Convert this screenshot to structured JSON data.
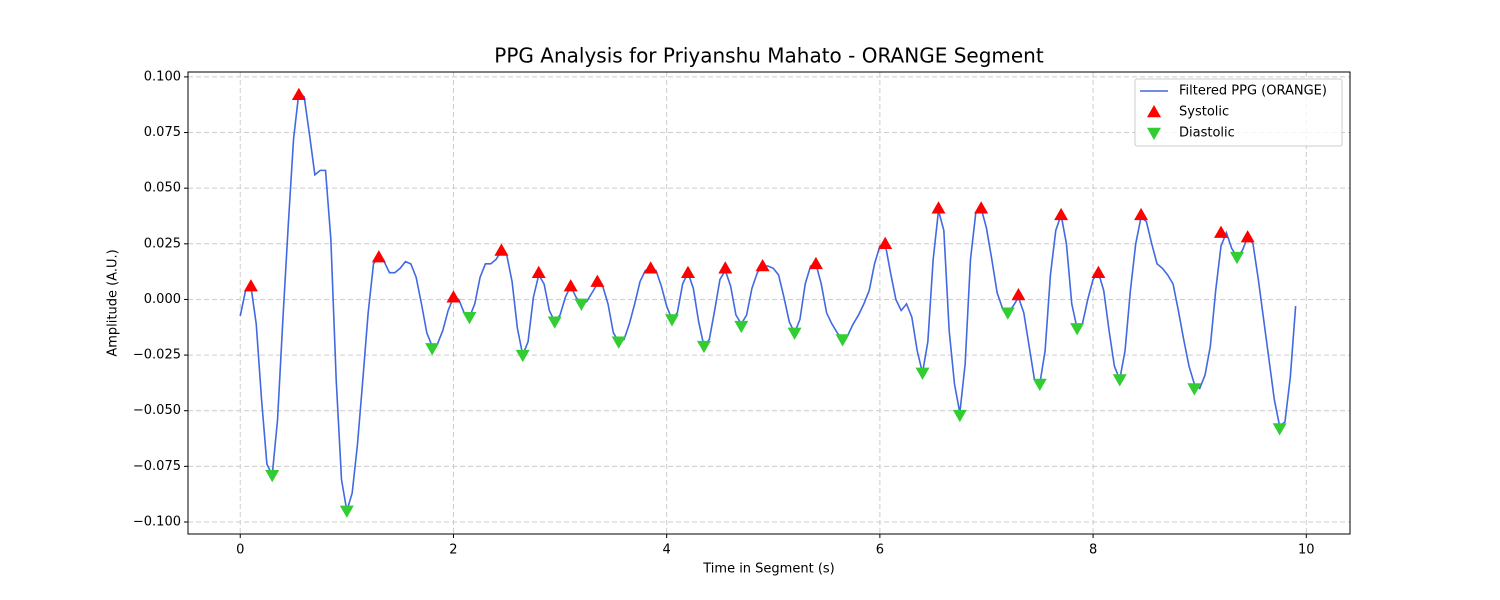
{
  "chart_data": {
    "type": "line",
    "title": "PPG Analysis for Priyanshu Mahato - ORANGE Segment",
    "xlabel": "Time in Segment (s)",
    "ylabel": "Amplitude (A.U.)",
    "xlim": [
      -0.49,
      10.41
    ],
    "ylim": [
      -0.1054,
      0.1022
    ],
    "xticks": [
      0,
      2,
      4,
      6,
      8,
      10
    ],
    "yticks": [
      {
        "value": 0.1,
        "label": "0.100"
      },
      {
        "value": 0.075,
        "label": "0.075"
      },
      {
        "value": 0.05,
        "label": "0.050"
      },
      {
        "value": 0.025,
        "label": "0.025"
      },
      {
        "value": 0,
        "label": "0.000"
      },
      {
        "value": -0.025,
        "label": "−0.025"
      },
      {
        "value": -0.05,
        "label": "−0.050"
      },
      {
        "value": -0.075,
        "label": "−0.075"
      },
      {
        "value": -0.1,
        "label": "−0.100"
      }
    ],
    "grid": true,
    "legend": "upper right",
    "series": [
      {
        "name": "Filtered PPG (ORANGE)",
        "type": "line",
        "color": "#4169e1",
        "x": [
          0,
          0.05,
          0.1,
          0.15,
          0.2,
          0.25,
          0.3,
          0.35,
          0.4,
          0.45,
          0.5,
          0.55,
          0.6,
          0.65,
          0.7,
          0.75,
          0.8,
          0.85,
          0.9,
          0.95,
          1,
          1.05,
          1.1,
          1.15,
          1.2,
          1.25,
          1.3,
          1.35,
          1.4,
          1.45,
          1.5,
          1.55,
          1.6,
          1.65,
          1.7,
          1.75,
          1.8,
          1.85,
          1.9,
          1.95,
          2,
          2.05,
          2.1,
          2.15,
          2.2,
          2.25,
          2.3,
          2.35,
          2.4,
          2.45,
          2.5,
          2.55,
          2.6,
          2.65,
          2.7,
          2.75,
          2.8,
          2.85,
          2.9,
          2.95,
          3,
          3.05,
          3.1,
          3.15,
          3.2,
          3.25,
          3.3,
          3.35,
          3.4,
          3.45,
          3.5,
          3.55,
          3.6,
          3.65,
          3.7,
          3.75,
          3.8,
          3.85,
          3.9,
          3.95,
          4,
          4.05,
          4.1,
          4.15,
          4.2,
          4.25,
          4.3,
          4.35,
          4.4,
          4.45,
          4.5,
          4.55,
          4.6,
          4.65,
          4.7,
          4.75,
          4.8,
          4.85,
          4.9,
          4.95,
          5,
          5.05,
          5.1,
          5.15,
          5.2,
          5.25,
          5.3,
          5.35,
          5.4,
          5.45,
          5.5,
          5.55,
          5.6,
          5.65,
          5.7,
          5.75,
          5.8,
          5.85,
          5.9,
          5.95,
          6,
          6.05,
          6.1,
          6.15,
          6.2,
          6.25,
          6.3,
          6.35,
          6.4,
          6.45,
          6.5,
          6.55,
          6.6,
          6.65,
          6.7,
          6.75,
          6.8,
          6.85,
          6.9,
          6.95,
          7,
          7.05,
          7.1,
          7.15,
          7.2,
          7.25,
          7.3,
          7.35,
          7.4,
          7.45,
          7.5,
          7.55,
          7.6,
          7.65,
          7.7,
          7.75,
          7.8,
          7.85,
          7.9,
          7.95,
          8,
          8.05,
          8.1,
          8.15,
          8.2,
          8.25,
          8.3,
          8.35,
          8.4,
          8.45,
          8.5,
          8.55,
          8.6,
          8.65,
          8.7,
          8.75,
          8.8,
          8.85,
          8.9,
          8.95,
          9,
          9.05,
          9.1,
          9.15,
          9.2,
          9.25,
          9.3,
          9.35,
          9.4,
          9.45,
          9.5,
          9.55,
          9.6,
          9.65,
          9.7,
          9.75,
          9.8,
          9.85,
          9.9
        ],
        "values": [
          -0.0074,
          0.004,
          0.006,
          -0.011,
          -0.045,
          -0.074,
          -0.079,
          -0.054,
          -0.009,
          0.033,
          0.072,
          0.093,
          0.091,
          0.074,
          0.056,
          0.058,
          0.058,
          0.027,
          -0.036,
          -0.081,
          -0.095,
          -0.087,
          -0.065,
          -0.036,
          -0.006,
          0.016,
          0.019,
          0.017,
          0.012,
          0.012,
          0.014,
          0.017,
          0.016,
          0.01,
          -0.002,
          -0.015,
          -0.021,
          -0.02,
          -0.014,
          -0.005,
          0.001,
          0.0,
          -0.006,
          -0.008,
          -0.002,
          0.01,
          0.016,
          0.016,
          0.018,
          0.022,
          0.02,
          0.008,
          -0.013,
          -0.025,
          -0.019,
          0.001,
          0.011,
          0.007,
          -0.005,
          -0.01,
          -0.007,
          0.001,
          0.006,
          0.001,
          -0.002,
          -0.001,
          0.003,
          0.007,
          0.006,
          -0.002,
          -0.015,
          -0.019,
          -0.018,
          -0.011,
          -0.002,
          0.008,
          0.013,
          0.014,
          0.013,
          0.006,
          -0.003,
          -0.009,
          -0.006,
          0.007,
          0.012,
          0.005,
          -0.01,
          -0.021,
          -0.018,
          -0.005,
          0.009,
          0.013,
          0.006,
          -0.007,
          -0.011,
          -0.007,
          0.005,
          0.012,
          0.015,
          0.015,
          0.014,
          0.011,
          0.001,
          -0.01,
          -0.015,
          -0.009,
          0.007,
          0.015,
          0.016,
          0.007,
          -0.006,
          -0.011,
          -0.015,
          -0.018,
          -0.016,
          -0.011,
          -0.007,
          -0.002,
          0.004,
          0.016,
          0.024,
          0.025,
          0.012,
          0.0,
          -0.005,
          -0.002,
          -0.008,
          -0.023,
          -0.033,
          -0.019,
          0.018,
          0.04,
          0.031,
          -0.014,
          -0.038,
          -0.051,
          -0.029,
          0.018,
          0.039,
          0.041,
          0.032,
          0.018,
          0.003,
          -0.004,
          -0.006,
          -0.003,
          0.001,
          -0.006,
          -0.021,
          -0.036,
          -0.038,
          -0.023,
          0.011,
          0.031,
          0.038,
          0.025,
          -0.002,
          -0.013,
          -0.011,
          0.0,
          0.009,
          0.012,
          0.004,
          -0.014,
          -0.03,
          -0.036,
          -0.023,
          0.004,
          0.025,
          0.037,
          0.035,
          0.025,
          0.016,
          0.014,
          0.011,
          0.007,
          -0.005,
          -0.018,
          -0.03,
          -0.038,
          -0.04,
          -0.034,
          -0.021,
          0.004,
          0.024,
          0.03,
          0.023,
          0.019,
          0.022,
          0.028,
          0.025,
          0.009,
          -0.009,
          -0.027,
          -0.045,
          -0.057,
          -0.055,
          -0.035,
          -0.003
        ]
      },
      {
        "name": "Systolic",
        "type": "scatter",
        "marker": "up",
        "color": "#ff0000",
        "x": [
          0.1,
          0.55,
          1.3,
          2.0,
          2.45,
          2.8,
          3.1,
          3.35,
          3.85,
          4.2,
          4.55,
          4.9,
          5.4,
          6.05,
          6.55,
          6.95,
          7.3,
          7.7,
          8.05,
          8.45,
          9.2,
          9.45
        ],
        "values": [
          0.006,
          0.092,
          0.019,
          0.001,
          0.022,
          0.012,
          0.006,
          0.008,
          0.014,
          0.012,
          0.014,
          0.015,
          0.016,
          0.025,
          0.041,
          0.041,
          0.002,
          0.038,
          0.012,
          0.038,
          0.03,
          0.028
        ]
      },
      {
        "name": "Diastolic",
        "type": "scatter",
        "marker": "down",
        "color": "#32cd32",
        "x": [
          0.3,
          1.0,
          1.8,
          2.15,
          2.65,
          2.95,
          3.2,
          3.55,
          4.05,
          4.35,
          4.7,
          5.2,
          5.65,
          6.4,
          6.75,
          7.2,
          7.5,
          7.85,
          8.25,
          8.95,
          9.35,
          9.75
        ],
        "values": [
          -0.079,
          -0.095,
          -0.022,
          -0.008,
          -0.025,
          -0.01,
          -0.002,
          -0.019,
          -0.009,
          -0.021,
          -0.012,
          -0.015,
          -0.018,
          -0.033,
          -0.052,
          -0.006,
          -0.038,
          -0.013,
          -0.036,
          -0.04,
          0.019,
          -0.058
        ]
      }
    ]
  }
}
